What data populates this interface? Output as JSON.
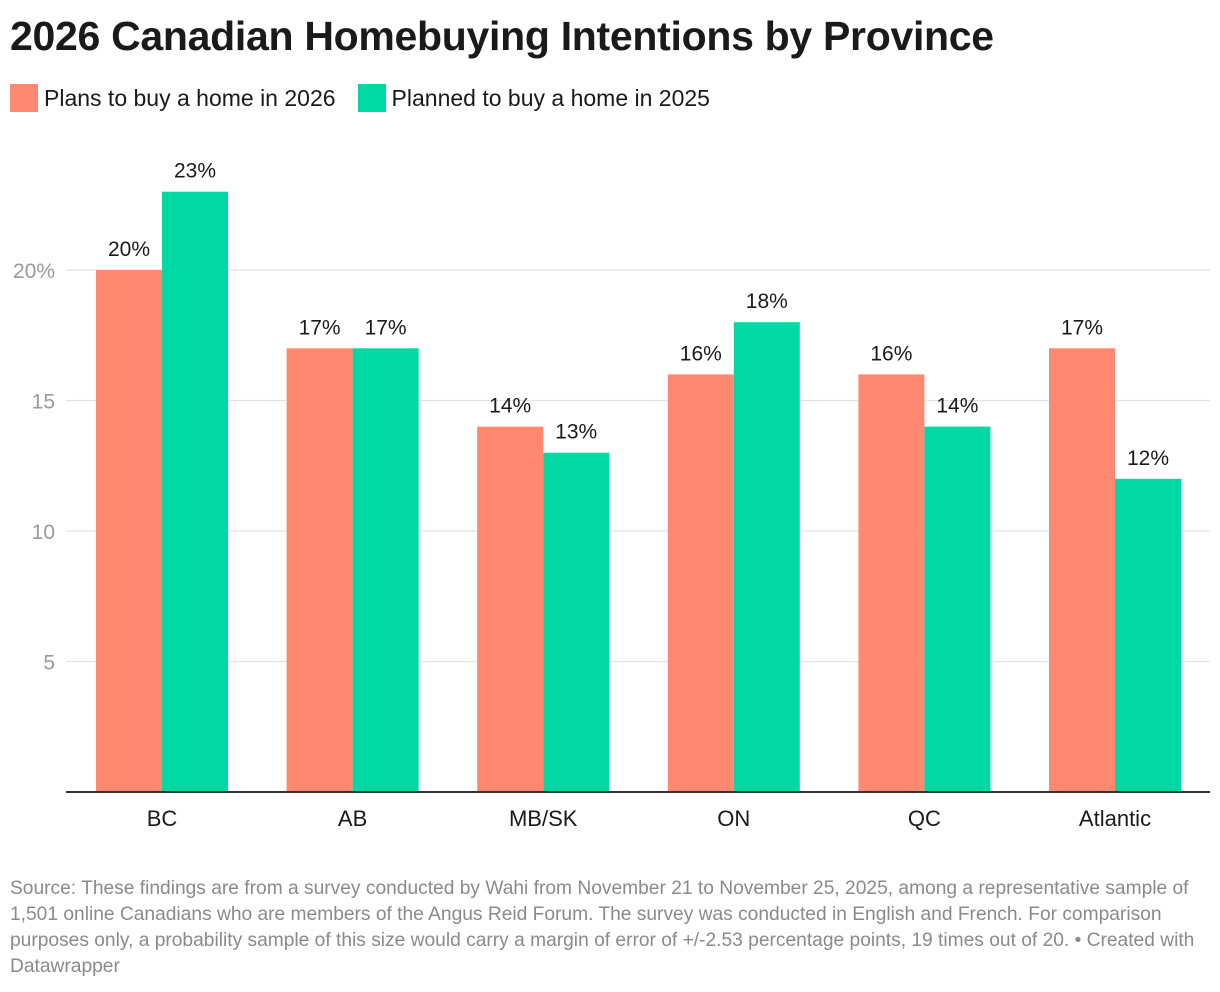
{
  "title": "2026 Canadian Homebuying Intentions by Province",
  "source_note": "Source: These findings are from a survey conducted by Wahi from November 21 to November 25, 2025, among a representative sample of 1,501 online Canadians who are members of the Angus Reid Forum. The survey was conducted in English and French. For comparison purposes only, a probability sample of this size would carry a margin of error of +/-2.53 percentage points, 19 times out of 20. • Created with Datawrapper",
  "colors": {
    "series_2026": "#ff8870",
    "series_2025": "#00d9a3"
  },
  "chart_data": {
    "type": "bar",
    "categories": [
      "BC",
      "AB",
      "MB/SK",
      "ON",
      "QC",
      "Atlantic"
    ],
    "series": [
      {
        "name": "Plans to buy a home in 2026",
        "values": [
          20,
          17,
          14,
          16,
          16,
          17
        ],
        "labels": [
          "20%",
          "17%",
          "14%",
          "16%",
          "16%",
          "17%"
        ]
      },
      {
        "name": "Planned to buy a home in 2025",
        "values": [
          23,
          17,
          13,
          18,
          14,
          12
        ],
        "labels": [
          "23%",
          "17%",
          "13%",
          "18%",
          "14%",
          "12%"
        ]
      }
    ],
    "ylim": [
      0,
      25
    ],
    "yticks": [
      5,
      10,
      15,
      20
    ],
    "ytick_labels": [
      "5",
      "10",
      "15",
      "20%"
    ],
    "grid": true,
    "legend_position": "top-left"
  }
}
